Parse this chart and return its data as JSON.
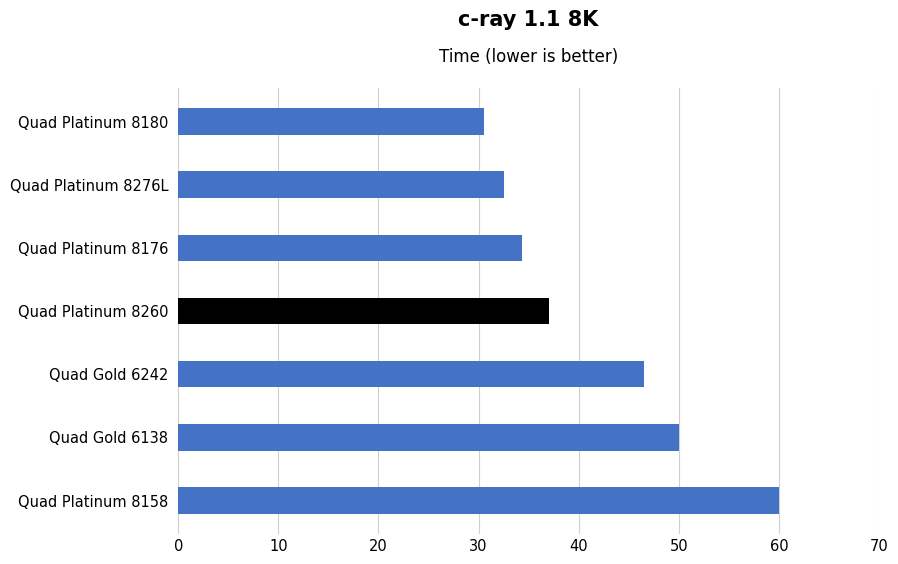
{
  "title": "c-ray 1.1 8K",
  "subtitle": "Time (lower is better)",
  "categories": [
    "Quad Platinum 8180",
    "Quad Platinum 8276L",
    "Quad Platinum 8176",
    "Quad Platinum 8260",
    "Quad Gold 6242",
    "Quad Gold 6138",
    "Quad Platinum 8158"
  ],
  "values": [
    30.5,
    32.5,
    34.3,
    37.0,
    46.5,
    50.0,
    60.0
  ],
  "bar_colors": [
    "#4472c4",
    "#4472c4",
    "#4472c4",
    "#000000",
    "#4472c4",
    "#4472c4",
    "#4472c4"
  ],
  "xlim": [
    0,
    70
  ],
  "xticks": [
    0,
    10,
    20,
    30,
    40,
    50,
    60,
    70
  ],
  "background_color": "#ffffff",
  "grid_color": "#d0d0d0",
  "title_fontsize": 15,
  "subtitle_fontsize": 12,
  "label_fontsize": 10.5,
  "tick_fontsize": 10.5,
  "bar_height": 0.42
}
